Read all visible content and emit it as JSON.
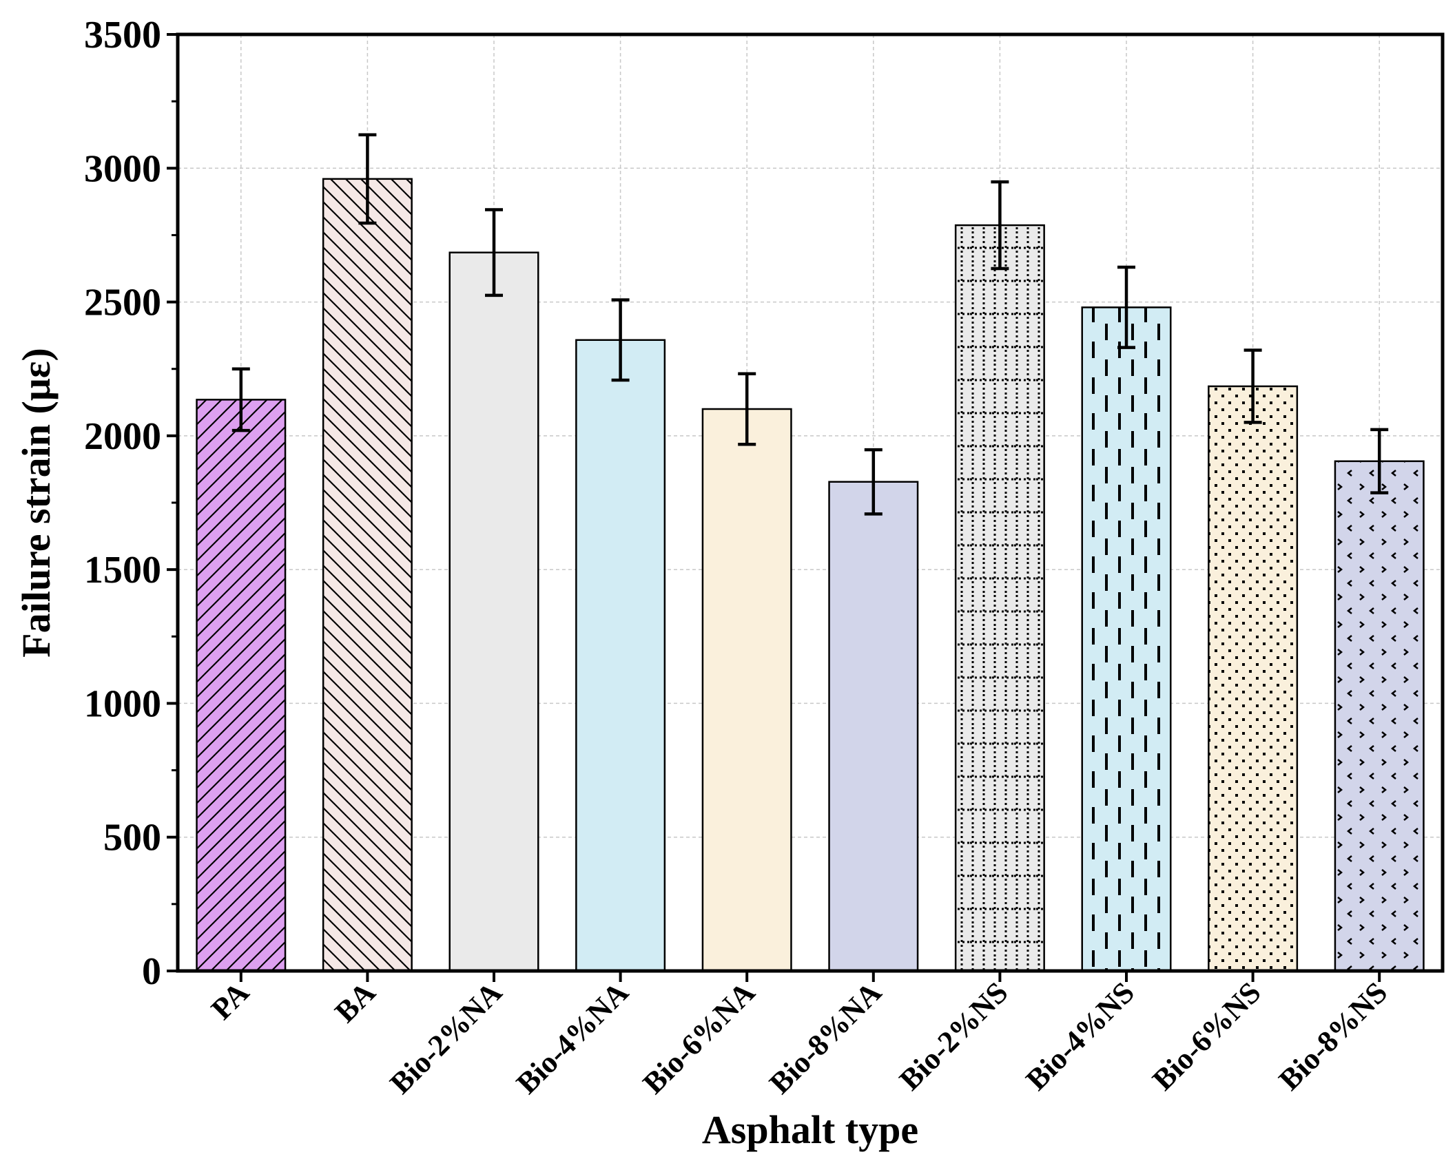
{
  "chart_data": {
    "type": "bar",
    "title": "",
    "xlabel": "Asphalt type",
    "ylabel": "Failure strain (με)",
    "ylim": [
      0,
      3500
    ],
    "yticks": [
      0,
      500,
      1000,
      1500,
      2000,
      2500,
      3000,
      3500
    ],
    "grid": true,
    "categories": [
      "PA",
      "BA",
      "Bio-2%NA",
      "Bio-4%NA",
      "Bio-6%NA",
      "Bio-8%NA",
      "Bio-2%NS",
      "Bio-4%NS",
      "Bio-6%NS",
      "Bio-8%NS"
    ],
    "values": [
      2135,
      2960,
      2685,
      2358,
      2100,
      1828,
      2787,
      2480,
      2185,
      1905
    ],
    "errors": [
      115,
      165,
      160,
      150,
      132,
      120,
      162,
      150,
      135,
      118
    ],
    "colors": [
      "#dda0f0",
      "#f5e8e6",
      "#eaeaea",
      "#d2ecf4",
      "#faf0dc",
      "#d2d5ea",
      "#eaeaea",
      "#d2ecf4",
      "#faf0dc",
      "#d2d5ea"
    ],
    "patterns": [
      "diag-right",
      "diag-left",
      "none",
      "none",
      "none",
      "none",
      "dotted-grid",
      "dashed-vertical",
      "dots",
      "chevrons"
    ]
  }
}
